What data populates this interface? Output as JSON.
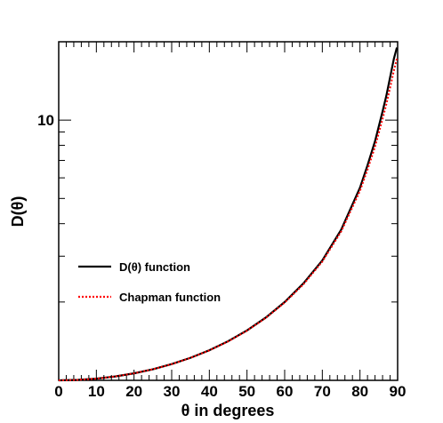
{
  "chart_data": {
    "type": "line",
    "title": "",
    "xlabel": "θ in degrees",
    "ylabel": "D(θ)",
    "xlim": [
      0,
      90
    ],
    "ylim": [
      1,
      20
    ],
    "yscale": "log",
    "grid": false,
    "legend_position": "center-left",
    "x_ticks": [
      0,
      10,
      20,
      30,
      40,
      50,
      60,
      70,
      80,
      90
    ],
    "x_tick_labels": [
      "0",
      "10",
      "20",
      "30",
      "40",
      "50",
      "60",
      "70",
      "80",
      "90"
    ],
    "y_ticks": [
      10
    ],
    "y_tick_labels": [
      "10"
    ],
    "series": [
      {
        "name": "D(θ) function",
        "color": "#000000",
        "style": "solid",
        "x": [
          0,
          5,
          10,
          15,
          20,
          25,
          30,
          35,
          40,
          45,
          50,
          55,
          60,
          65,
          70,
          75,
          80,
          82,
          84,
          86,
          87,
          88,
          89,
          89.8
        ],
        "y": [
          1.0,
          1.004,
          1.015,
          1.035,
          1.064,
          1.103,
          1.155,
          1.221,
          1.305,
          1.414,
          1.556,
          1.743,
          1.999,
          2.36,
          2.89,
          3.79,
          5.5,
          6.7,
          8.3,
          10.8,
          12.4,
          14.6,
          17.2,
          19.0
        ]
      },
      {
        "name": "Chapman function",
        "color": "#ff0000",
        "style": "dotted",
        "x": [
          0,
          5,
          10,
          15,
          20,
          25,
          30,
          35,
          40,
          45,
          50,
          55,
          60,
          65,
          70,
          75,
          80,
          82,
          84,
          86,
          87,
          88,
          89,
          89.8
        ],
        "y": [
          1.0,
          1.004,
          1.015,
          1.035,
          1.064,
          1.103,
          1.154,
          1.22,
          1.303,
          1.411,
          1.551,
          1.737,
          1.99,
          2.34,
          2.86,
          3.73,
          5.35,
          6.45,
          7.9,
          10.1,
          11.5,
          13.3,
          15.5,
          17.2
        ]
      }
    ]
  }
}
